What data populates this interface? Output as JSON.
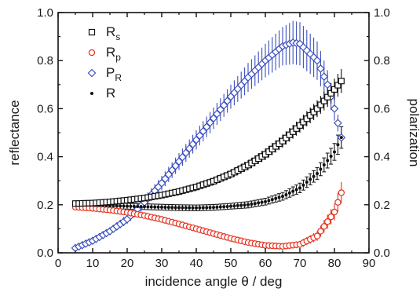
{
  "chart_data": {
    "type": "scatter",
    "xlabel": "incidence angle θ / deg",
    "ylabel_left": "reflectance",
    "ylabel_right": "polarization",
    "xlim": [
      0,
      90
    ],
    "ylim": [
      0.0,
      1.0
    ],
    "y2lim": [
      0.0,
      1.0
    ],
    "x_ticks": [
      "0",
      "10",
      "20",
      "30",
      "40",
      "50",
      "60",
      "70",
      "80",
      "90"
    ],
    "y_ticks": [
      "0.0",
      "0.2",
      "0.4",
      "0.6",
      "0.8",
      "1.0"
    ],
    "y2_ticks": [
      "0.0",
      "0.2",
      "0.4",
      "0.6",
      "0.8",
      "1.0"
    ],
    "legend_placement": "top-left",
    "colors": {
      "Rs": "#111111",
      "Rp": "#e8321e",
      "PR": "#3b4fbf",
      "R": "#111111"
    },
    "legend": [
      {
        "key": "Rs",
        "main": "R",
        "sub": "s",
        "marker": "square"
      },
      {
        "key": "Rp",
        "main": "R",
        "sub": "p",
        "marker": "circle"
      },
      {
        "key": "PR",
        "main": "P",
        "sub": "R",
        "marker": "diamond"
      },
      {
        "key": "R",
        "main": "R",
        "sub": "",
        "marker": "dot"
      }
    ],
    "series": [
      {
        "key": "Rs",
        "name": "Rs",
        "marker": "square",
        "x": [
          5,
          10,
          15,
          20,
          25,
          30,
          35,
          40,
          45,
          50,
          55,
          60,
          65,
          70,
          75,
          80,
          82
        ],
        "y": [
          0.205,
          0.207,
          0.212,
          0.219,
          0.228,
          0.24,
          0.255,
          0.274,
          0.298,
          0.328,
          0.365,
          0.41,
          0.465,
          0.53,
          0.6,
          0.68,
          0.715
        ],
        "err": [
          0.01,
          0.01,
          0.01,
          0.012,
          0.012,
          0.013,
          0.014,
          0.015,
          0.017,
          0.019,
          0.021,
          0.024,
          0.027,
          0.03,
          0.035,
          0.045,
          0.05
        ]
      },
      {
        "key": "Rp",
        "name": "Rp",
        "marker": "circle",
        "x": [
          5,
          10,
          15,
          20,
          25,
          30,
          35,
          40,
          45,
          50,
          55,
          60,
          65,
          70,
          75,
          80,
          82
        ],
        "y": [
          0.19,
          0.185,
          0.178,
          0.168,
          0.155,
          0.139,
          0.12,
          0.1,
          0.08,
          0.06,
          0.043,
          0.031,
          0.027,
          0.035,
          0.07,
          0.17,
          0.25
        ],
        "err": [
          0.01,
          0.01,
          0.01,
          0.01,
          0.01,
          0.01,
          0.01,
          0.01,
          0.01,
          0.01,
          0.01,
          0.012,
          0.012,
          0.015,
          0.02,
          0.035,
          0.045
        ]
      },
      {
        "key": "PR",
        "name": "PR",
        "marker": "diamond",
        "x": [
          5,
          10,
          15,
          20,
          25,
          30,
          35,
          40,
          45,
          50,
          55,
          60,
          65,
          68,
          70,
          75,
          78,
          80,
          82
        ],
        "y": [
          0.02,
          0.05,
          0.09,
          0.14,
          0.21,
          0.29,
          0.38,
          0.47,
          0.56,
          0.65,
          0.73,
          0.8,
          0.86,
          0.875,
          0.87,
          0.8,
          0.7,
          0.6,
          0.48
        ],
        "err": [
          0.005,
          0.01,
          0.015,
          0.02,
          0.025,
          0.03,
          0.035,
          0.04,
          0.045,
          0.05,
          0.06,
          0.07,
          0.08,
          0.09,
          0.09,
          0.08,
          0.06,
          0.05,
          0.02
        ]
      },
      {
        "key": "R",
        "name": "R",
        "marker": "dot",
        "x": [
          5,
          10,
          15,
          20,
          25,
          30,
          35,
          40,
          45,
          50,
          55,
          60,
          65,
          70,
          75,
          80,
          82
        ],
        "y": [
          0.2,
          0.198,
          0.196,
          0.194,
          0.192,
          0.19,
          0.188,
          0.187,
          0.189,
          0.194,
          0.2,
          0.213,
          0.235,
          0.27,
          0.33,
          0.42,
          0.48
        ],
        "err": [
          0.012,
          0.012,
          0.012,
          0.012,
          0.012,
          0.012,
          0.012,
          0.012,
          0.012,
          0.012,
          0.013,
          0.014,
          0.016,
          0.02,
          0.025,
          0.035,
          0.045
        ]
      }
    ]
  }
}
